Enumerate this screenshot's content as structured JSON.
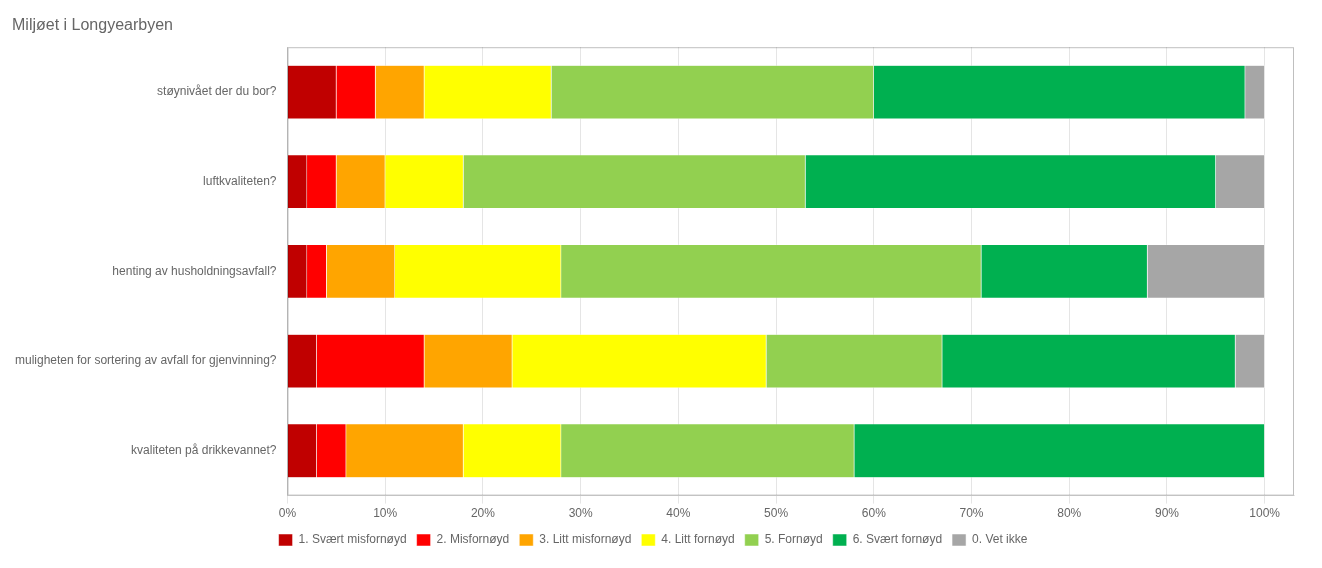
{
  "chart_data": {
    "type": "bar",
    "orientation": "horizontal",
    "stacked": true,
    "title": "Miljøet i Longyearbyen",
    "categories": [
      "støynivået der du bor?",
      "luftkvaliteten?",
      "henting av husholdningsavfall?",
      "muligheten for sortering av avfall for gjenvinning?",
      "kvaliteten på drikkevannet?"
    ],
    "series": [
      {
        "name": "1. Svært misfornøyd",
        "color": "#C00000",
        "values": [
          5,
          2,
          2,
          3,
          3
        ]
      },
      {
        "name": "2. Misfornøyd",
        "color": "#FF0000",
        "values": [
          4,
          3,
          2,
          11,
          3
        ]
      },
      {
        "name": "3. Litt misfornøyd",
        "color": "#FFA500",
        "values": [
          5,
          5,
          7,
          9,
          12
        ]
      },
      {
        "name": "4. Litt fornøyd",
        "color": "#FFFF00",
        "values": [
          13,
          8,
          17,
          26,
          10
        ]
      },
      {
        "name": "5. Fornøyd",
        "color": "#92D050",
        "values": [
          33,
          35,
          43,
          18,
          30
        ]
      },
      {
        "name": "6. Svært fornøyd",
        "color": "#00B050",
        "values": [
          38,
          42,
          17,
          30,
          42
        ]
      },
      {
        "name": "0. Vet ikke",
        "color": "#A6A6A6",
        "values": [
          2,
          5,
          12,
          3,
          0
        ]
      }
    ],
    "xlim": [
      0,
      103
    ],
    "xticks": [
      {
        "value": 0,
        "label": "0%"
      },
      {
        "value": 10,
        "label": "10%"
      },
      {
        "value": 20,
        "label": "20%"
      },
      {
        "value": 30,
        "label": "30%"
      },
      {
        "value": 40,
        "label": "40%"
      },
      {
        "value": 50,
        "label": "50%"
      },
      {
        "value": 60,
        "label": "60%"
      },
      {
        "value": 70,
        "label": "70%"
      },
      {
        "value": 80,
        "label": "80%"
      },
      {
        "value": 90,
        "label": "90%"
      },
      {
        "value": 100,
        "label": "100%"
      }
    ],
    "grid": true,
    "legend": "bottom"
  }
}
